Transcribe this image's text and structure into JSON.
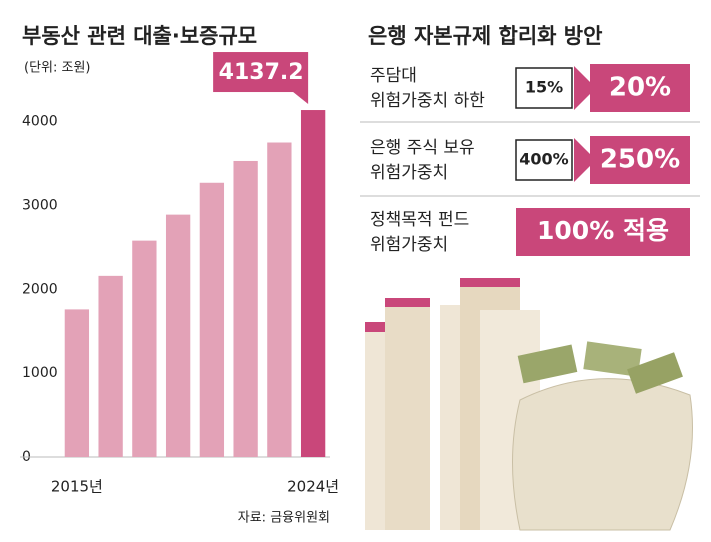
{
  "chart_data": {
    "type": "bar",
    "title": "부동산 관련 대출·보증규모",
    "subtitle": "(단위: 조원)",
    "categories": [
      "2015년",
      null,
      null,
      null,
      null,
      null,
      null,
      "2024년"
    ],
    "values": [
      1760,
      2160,
      2580,
      2890,
      3270,
      3530,
      3750,
      4137.2
    ],
    "color": "#e3a2b7",
    "highlight_color": "#c9477a",
    "ylim": [
      0,
      4400
    ],
    "yticks": [
      0,
      1000,
      2000,
      3000,
      4000
    ],
    "grid": false
  },
  "source": "자료: 금융위원회",
  "panel": {
    "title": "은행 자본규제 합리화 방안",
    "rows": [
      {
        "label": [
          "주담대",
          "위험가중치 하한"
        ],
        "from": "15%",
        "to": "20%"
      },
      {
        "label": [
          "은행 주식 보유",
          "위험가중치"
        ],
        "from": "400%",
        "to": "250%"
      },
      {
        "label": [
          "정책목적 펀드",
          "위험가중치"
        ],
        "to": "100% 적용"
      }
    ]
  }
}
